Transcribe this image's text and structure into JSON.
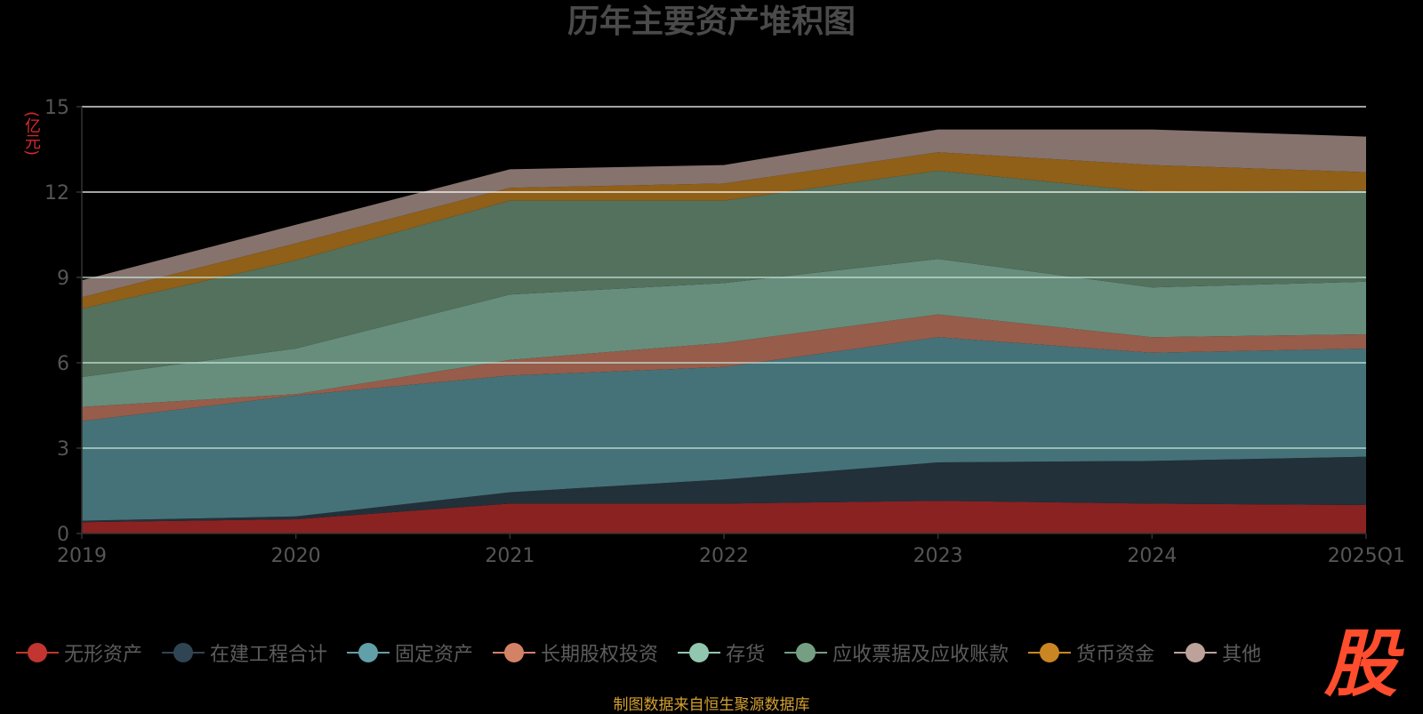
{
  "title": "历年主要资产堆积图",
  "unit": "(亿元)",
  "footer": "制图数据来自恒生聚源数据库",
  "logo": "股",
  "chart_data": {
    "type": "area",
    "stacked": true,
    "title": "历年主要资产堆积图",
    "ylabel": "(亿元)",
    "ylim": [
      0,
      15
    ],
    "yticks": [
      0,
      3,
      6,
      9,
      12,
      15
    ],
    "categories": [
      "2019",
      "2020",
      "2021",
      "2022",
      "2023",
      "2024",
      "2025Q1"
    ],
    "series": [
      {
        "name": "无形资产",
        "color": "#c23531",
        "area_color": "#8b2222",
        "values": [
          0.4,
          0.5,
          1.05,
          1.05,
          1.15,
          1.05,
          1.0
        ]
      },
      {
        "name": "在建工程合计",
        "color": "#2f4554",
        "area_color": "#223039",
        "values": [
          0.05,
          0.1,
          0.4,
          0.85,
          1.35,
          1.5,
          1.7
        ]
      },
      {
        "name": "固定资产",
        "color": "#61a0a8",
        "area_color": "#457278",
        "values": [
          3.5,
          4.25,
          4.1,
          3.95,
          4.4,
          3.8,
          3.8
        ]
      },
      {
        "name": "长期股权投资",
        "color": "#d48265",
        "area_color": "#975c4a",
        "values": [
          0.5,
          0.05,
          0.55,
          0.85,
          0.8,
          0.55,
          0.5
        ]
      },
      {
        "name": "存货",
        "color": "#91c7ae",
        "area_color": "#678e7c",
        "values": [
          1.05,
          1.6,
          2.3,
          2.1,
          1.95,
          1.75,
          1.85
        ]
      },
      {
        "name": "应收票据及应收账款",
        "color": "#749f83",
        "area_color": "#53715d",
        "values": [
          2.4,
          3.1,
          3.3,
          2.9,
          3.1,
          3.35,
          3.2
        ]
      },
      {
        "name": "货币资金",
        "color": "#ca8622",
        "area_color": "#905f18",
        "values": [
          0.4,
          0.6,
          0.45,
          0.6,
          0.65,
          0.95,
          0.65
        ]
      },
      {
        "name": "其他",
        "color": "#bda29a",
        "area_color": "#86736d",
        "values": [
          0.6,
          0.65,
          0.65,
          0.65,
          0.8,
          1.25,
          1.25
        ]
      }
    ]
  }
}
